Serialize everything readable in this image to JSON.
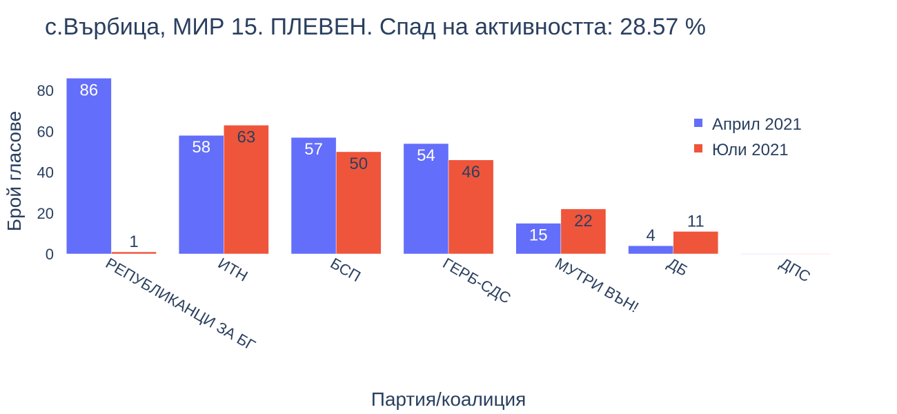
{
  "chart_data": {
    "type": "bar",
    "title": "с.Върбица, МИР 15. ПЛЕВЕН. Спад на активността: 28.57 %",
    "xlabel": "Партия/коалиция",
    "ylabel": "Брой гласове",
    "categories": [
      "РЕПУБЛИКАНЦИ ЗА БГ",
      "ИТН",
      "БСП",
      "ГЕРБ-СДС",
      "МУТРИ ВЪН!",
      "ДБ",
      "ДПС"
    ],
    "series": [
      {
        "name": "Април 2021",
        "color": "#636efa",
        "values": [
          86,
          58,
          57,
          54,
          15,
          4,
          0
        ]
      },
      {
        "name": "Юли 2021",
        "color": "#ef553b",
        "values": [
          1,
          63,
          50,
          46,
          22,
          11,
          0
        ]
      }
    ],
    "data_labels": [
      [
        "86",
        "58",
        "57",
        "54",
        "15",
        "4",
        ""
      ],
      [
        "1",
        "63",
        "50",
        "46",
        "22",
        "11",
        ""
      ]
    ],
    "ylim": [
      0,
      90.5
    ],
    "yticks": [
      0,
      20,
      40,
      60,
      80
    ],
    "grid": false,
    "legend_position": "right"
  }
}
